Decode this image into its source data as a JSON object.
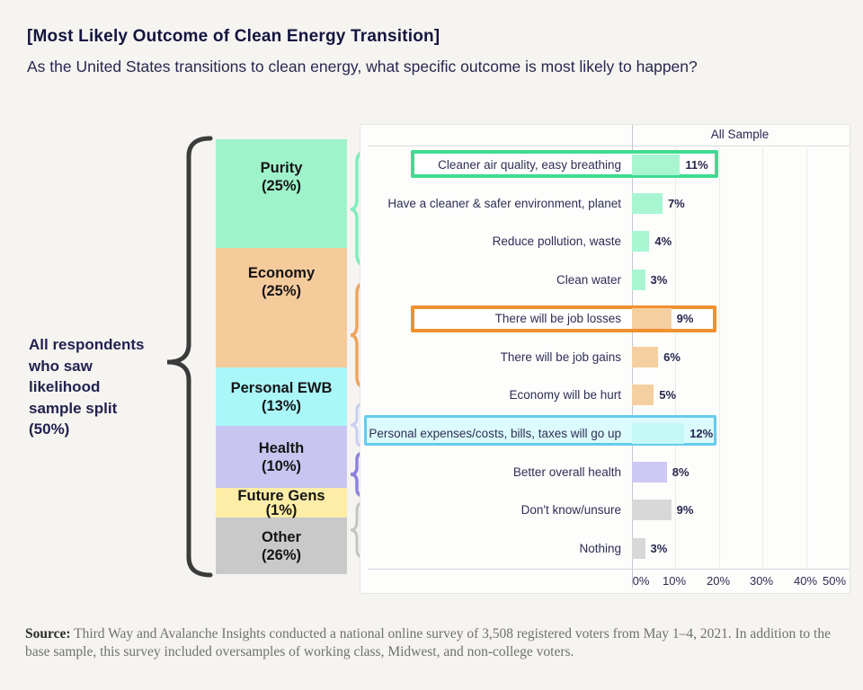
{
  "page": {
    "title": "[Most Likely Outcome of Clean Energy Transition]",
    "subtitle": "As the United States transitions to clean energy, what specific outcome is most likely to happen?"
  },
  "left_annotation": {
    "full_text": "All respondents who saw likelihood sample split (50%)",
    "lines": [
      "All respondents",
      "who saw",
      "likelihood",
      "sample split",
      "(50%)"
    ]
  },
  "stacked_bar": {
    "segments": [
      {
        "label": "Purity",
        "pct_label": "(25%)",
        "pct": 25,
        "color": "#9ff3cb"
      },
      {
        "label": "Economy",
        "pct_label": "(25%)",
        "pct": 25,
        "color": "#f6cb9c"
      },
      {
        "label": "Personal EWB",
        "pct_label": "(13%)",
        "pct": 13,
        "color": "#aaf7fa"
      },
      {
        "label": "Health",
        "pct_label": "(10%)",
        "pct": 10,
        "color": "#c9c5f1"
      },
      {
        "label": "Future Gens",
        "pct_label": "(1%)",
        "pct": 1,
        "color": "#fdeda6"
      },
      {
        "label": "Other",
        "pct_label": "(26%)",
        "pct": 26,
        "color": "#c9c9c9"
      }
    ]
  },
  "panel": {
    "column_header": "All Sample"
  },
  "rows": [
    {
      "label": "Cleaner air quality, easy breathing",
      "value_label": "11%",
      "pct": 11,
      "group": "Purity",
      "color": "#a8f5d2",
      "highlight": "green"
    },
    {
      "label": "Have a cleaner & safer environment, planet",
      "value_label": "7%",
      "pct": 7,
      "group": "Purity",
      "color": "#a8f5d2",
      "highlight": null
    },
    {
      "label": "Reduce pollution, waste",
      "value_label": "4%",
      "pct": 4,
      "group": "Purity",
      "color": "#a8f5d2",
      "highlight": null
    },
    {
      "label": "Clean water",
      "value_label": "3%",
      "pct": 3,
      "group": "Purity",
      "color": "#a8f5d2",
      "highlight": null
    },
    {
      "label": "There will be job losses",
      "value_label": "9%",
      "pct": 9,
      "group": "Economy",
      "color": "#f4cf9f",
      "highlight": "orange"
    },
    {
      "label": "There will be job gains",
      "value_label": "6%",
      "pct": 6,
      "group": "Economy",
      "color": "#f4cf9f",
      "highlight": null
    },
    {
      "label": "Economy will be hurt",
      "value_label": "5%",
      "pct": 5,
      "group": "Economy",
      "color": "#f4cf9f",
      "highlight": null
    },
    {
      "label": "Personal expenses/costs, bills, taxes will go up",
      "value_label": "12%",
      "pct": 12,
      "group": "Personal EWB",
      "color": "#c4f8f7",
      "highlight": "cyan"
    },
    {
      "label": "Better overall health",
      "value_label": "8%",
      "pct": 8,
      "group": "Health",
      "color": "#cdc8f4",
      "highlight": null
    },
    {
      "label": "Don't know/unsure",
      "value_label": "9%",
      "pct": 9,
      "group": "Other",
      "color": "#d8d8d8",
      "highlight": null
    },
    {
      "label": "Nothing",
      "value_label": "3%",
      "pct": 3,
      "group": "Other",
      "color": "#d8d8d8",
      "highlight": null
    }
  ],
  "x_axis": {
    "tick_labels": [
      "0%",
      "10%",
      "20%",
      "30%",
      "40%",
      "50%"
    ],
    "min": 0,
    "max": 50
  },
  "highlight_colors": {
    "green": "#3edc92",
    "orange": "#f0912f",
    "cyan": "#66cbed"
  },
  "braces": {
    "black": "#3b3b3b",
    "green": "#7deebb",
    "orange": "#eda45c",
    "pale_blue": "#c9cff2",
    "purple": "#8c82de",
    "gray": "#c3c3c3"
  },
  "source": {
    "label": "Source:",
    "text": " Third Way and Avalanche Insights conducted a national online survey of 3,508 registered voters from May 1–4, 2021. In addition to the base sample, this survey included oversamples of working class, Midwest, and non-college voters."
  },
  "chart_data": {
    "type": "bar",
    "orientation": "horizontal",
    "title": "[Most Likely Outcome of Clean Energy Transition]",
    "subtitle": "As the United States transitions to clean energy, what specific outcome is most likely to happen?",
    "series_label": "All Sample",
    "categories": [
      "Cleaner air quality, easy breathing",
      "Have a cleaner & safer environment, planet",
      "Reduce pollution, waste",
      "Clean water",
      "There will be job losses",
      "There will be job gains",
      "Economy will be hurt",
      "Personal expenses/costs, bills, taxes will go up",
      "Better overall health",
      "Don't know/unsure",
      "Nothing"
    ],
    "values": [
      11,
      7,
      4,
      3,
      9,
      6,
      5,
      12,
      8,
      9,
      3
    ],
    "value_labels": [
      "11%",
      "7%",
      "4%",
      "3%",
      "9%",
      "6%",
      "5%",
      "12%",
      "8%",
      "9%",
      "3%"
    ],
    "xlim": [
      0,
      50
    ],
    "x_ticks": [
      "0%",
      "10%",
      "20%",
      "30%",
      "40%",
      "50%"
    ],
    "grid": true,
    "groups": [
      {
        "name": "Purity",
        "pct": 25,
        "rows": [
          0,
          1,
          2,
          3
        ]
      },
      {
        "name": "Economy",
        "pct": 25,
        "rows": [
          4,
          5,
          6
        ]
      },
      {
        "name": "Personal EWB",
        "pct": 13,
        "rows": [
          7
        ]
      },
      {
        "name": "Health",
        "pct": 10,
        "rows": [
          8
        ]
      },
      {
        "name": "Future Gens",
        "pct": 1,
        "rows": []
      },
      {
        "name": "Other",
        "pct": 26,
        "rows": [
          9,
          10
        ]
      }
    ],
    "highlighted_rows": [
      {
        "index": 0,
        "color": "green"
      },
      {
        "index": 4,
        "color": "orange"
      },
      {
        "index": 7,
        "color": "cyan"
      }
    ],
    "annotation": "All respondents who saw likelihood sample split (50%)"
  }
}
